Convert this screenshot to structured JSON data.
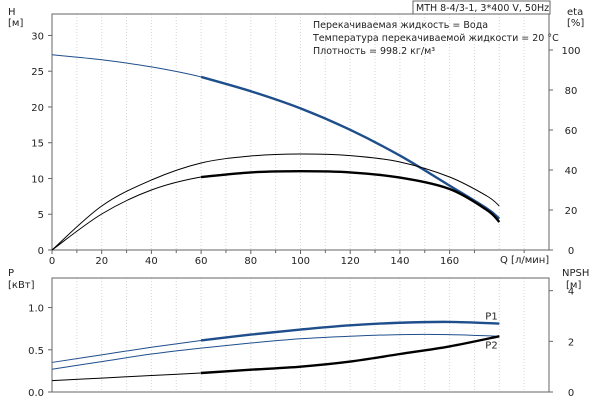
{
  "chart_data": [
    {
      "type": "line",
      "title": "MTH 8-4/3-1, 3*400 V, 50Hz",
      "info": [
        "Перекачиваемая жидкость = Вода",
        "Температура перекачиваемой жидкости = 20 °C",
        "Плотность = 998.2 кг/м³"
      ],
      "y_left_label": [
        "H",
        "[м]"
      ],
      "y_right_label": [
        "eta",
        "[%]"
      ],
      "xlabel": "Q [л/мин]",
      "xlim": [
        0,
        200
      ],
      "x_ticks": [
        0,
        20,
        40,
        60,
        80,
        100,
        120,
        140,
        160
      ],
      "ylim_left": [
        0,
        33
      ],
      "y_left_ticks": [
        0,
        5,
        10,
        15,
        20,
        25,
        30
      ],
      "ylim_right": [
        0,
        118
      ],
      "y_right_ticks": [
        0,
        20,
        40,
        60,
        80,
        100
      ],
      "grid": true,
      "series": [
        {
          "axis": "left",
          "color": "#1f4e8c",
          "x": [
            0,
            20,
            40,
            60,
            80,
            100,
            120,
            140,
            160,
            175,
            180
          ],
          "y": [
            27.3,
            26.6,
            25.6,
            24.2,
            22.2,
            19.8,
            16.8,
            13.2,
            9.0,
            5.8,
            4.4
          ]
        },
        {
          "axis": "right",
          "color": "#000000",
          "x": [
            0,
            20,
            40,
            60,
            80,
            100,
            120,
            140,
            160,
            175,
            180
          ],
          "y": [
            0,
            22,
            35,
            43.5,
            47,
            48,
            47.2,
            44,
            36.5,
            27,
            22
          ]
        },
        {
          "axis": "right",
          "color": "#000000",
          "x": [
            0,
            20,
            40,
            60,
            80,
            100,
            120,
            140,
            160,
            175,
            180
          ],
          "y": [
            0,
            18,
            30,
            36.5,
            38.8,
            39.4,
            38.8,
            36.2,
            30.5,
            20,
            14
          ]
        }
      ]
    },
    {
      "type": "line",
      "y_left_label": [
        "P",
        "[кВт]"
      ],
      "y_right_label": [
        "NPSH",
        "[м]"
      ],
      "xlim": [
        0,
        200
      ],
      "ylim_left": [
        0,
        1.35
      ],
      "y_left_ticks": [
        "0.0",
        "0.5",
        "1.0"
      ],
      "ylim_right": [
        0,
        4.5
      ],
      "y_right_ticks": [
        0,
        2,
        4
      ],
      "grid": true,
      "series": [
        {
          "name": "P1",
          "axis": "left",
          "color": "#1f4e8c",
          "x": [
            0,
            20,
            40,
            60,
            80,
            100,
            120,
            140,
            160,
            180
          ],
          "y": [
            0.35,
            0.44,
            0.53,
            0.61,
            0.68,
            0.74,
            0.79,
            0.82,
            0.83,
            0.81
          ]
        },
        {
          "name": "P2",
          "axis": "left",
          "color": "#1f4e8c",
          "x": [
            0,
            20,
            40,
            60,
            80,
            100,
            120,
            140,
            160,
            180
          ],
          "y": [
            0.27,
            0.36,
            0.45,
            0.52,
            0.58,
            0.63,
            0.66,
            0.68,
            0.68,
            0.66
          ]
        },
        {
          "axis": "right",
          "color": "#000000",
          "x": [
            0,
            20,
            40,
            60,
            80,
            100,
            120,
            140,
            160,
            180
          ],
          "y": [
            0.45,
            0.55,
            0.65,
            0.75,
            0.88,
            1.0,
            1.2,
            1.5,
            1.8,
            2.2
          ]
        }
      ]
    }
  ]
}
